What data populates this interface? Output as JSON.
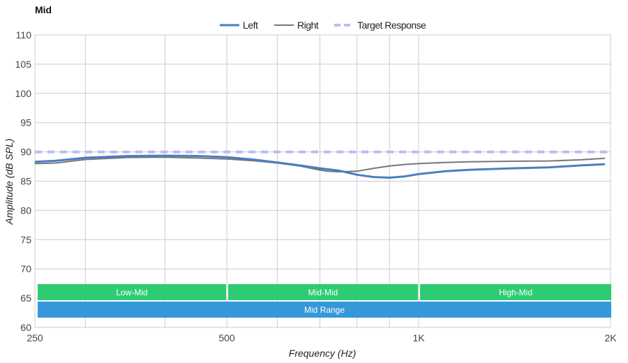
{
  "chart_data": {
    "type": "line",
    "title": "Mid",
    "xlabel": "Frequency (Hz)",
    "ylabel": "Amplitude (dB SPL)",
    "xscale": "log",
    "xlim": [
      250,
      2000
    ],
    "ylim": [
      60,
      110
    ],
    "grid": true,
    "legend_position": "top-center",
    "x_ticks": [
      {
        "value": 250,
        "label": "250"
      },
      {
        "value": 500,
        "label": "500"
      },
      {
        "value": 1000,
        "label": "1K"
      },
      {
        "value": 2000,
        "label": "2K"
      }
    ],
    "x_minor_grid": [
      300,
      400,
      600,
      700,
      800,
      900
    ],
    "y_ticks": [
      60,
      65,
      70,
      75,
      80,
      85,
      90,
      95,
      100,
      105,
      110
    ],
    "series": [
      {
        "name": "Left",
        "color": "#4a7fc1",
        "style": "solid",
        "x": [
          250,
          270,
          300,
          350,
          400,
          450,
          500,
          550,
          600,
          650,
          700,
          750,
          800,
          850,
          900,
          950,
          1000,
          1100,
          1200,
          1400,
          1600,
          1800,
          1960
        ],
        "y": [
          88.3,
          88.5,
          89.0,
          89.3,
          89.35,
          89.3,
          89.1,
          88.7,
          88.2,
          87.7,
          87.2,
          86.8,
          86.1,
          85.7,
          85.6,
          85.8,
          86.2,
          86.7,
          86.95,
          87.2,
          87.35,
          87.7,
          87.9
        ]
      },
      {
        "name": "Right",
        "color": "#777777",
        "style": "solid",
        "x": [
          250,
          270,
          300,
          350,
          400,
          450,
          500,
          550,
          600,
          650,
          700,
          720,
          750,
          800,
          850,
          900,
          950,
          1000,
          1100,
          1200,
          1400,
          1600,
          1800,
          1960
        ],
        "y": [
          88.0,
          88.1,
          88.7,
          89.05,
          89.1,
          88.95,
          88.8,
          88.5,
          88.1,
          87.6,
          86.9,
          86.7,
          86.6,
          86.7,
          87.2,
          87.6,
          87.85,
          88.0,
          88.2,
          88.3,
          88.4,
          88.45,
          88.65,
          88.9
        ]
      },
      {
        "name": "Target Response",
        "color": "#bbbbf6",
        "style": "dashed",
        "x": [
          250,
          2000
        ],
        "y": [
          90,
          90
        ]
      }
    ],
    "bands": [
      {
        "label": "Low-Mid",
        "from": 250,
        "to": 500,
        "color": "#2ecc71",
        "row": 0
      },
      {
        "label": "Mid-Mid",
        "from": 500,
        "to": 1000,
        "color": "#2ecc71",
        "row": 0
      },
      {
        "label": "High-Mid",
        "from": 1000,
        "to": 2000,
        "color": "#2ecc71",
        "row": 0
      },
      {
        "label": "Mid Range",
        "from": 250,
        "to": 2000,
        "color": "#3498db",
        "row": 1
      }
    ]
  }
}
